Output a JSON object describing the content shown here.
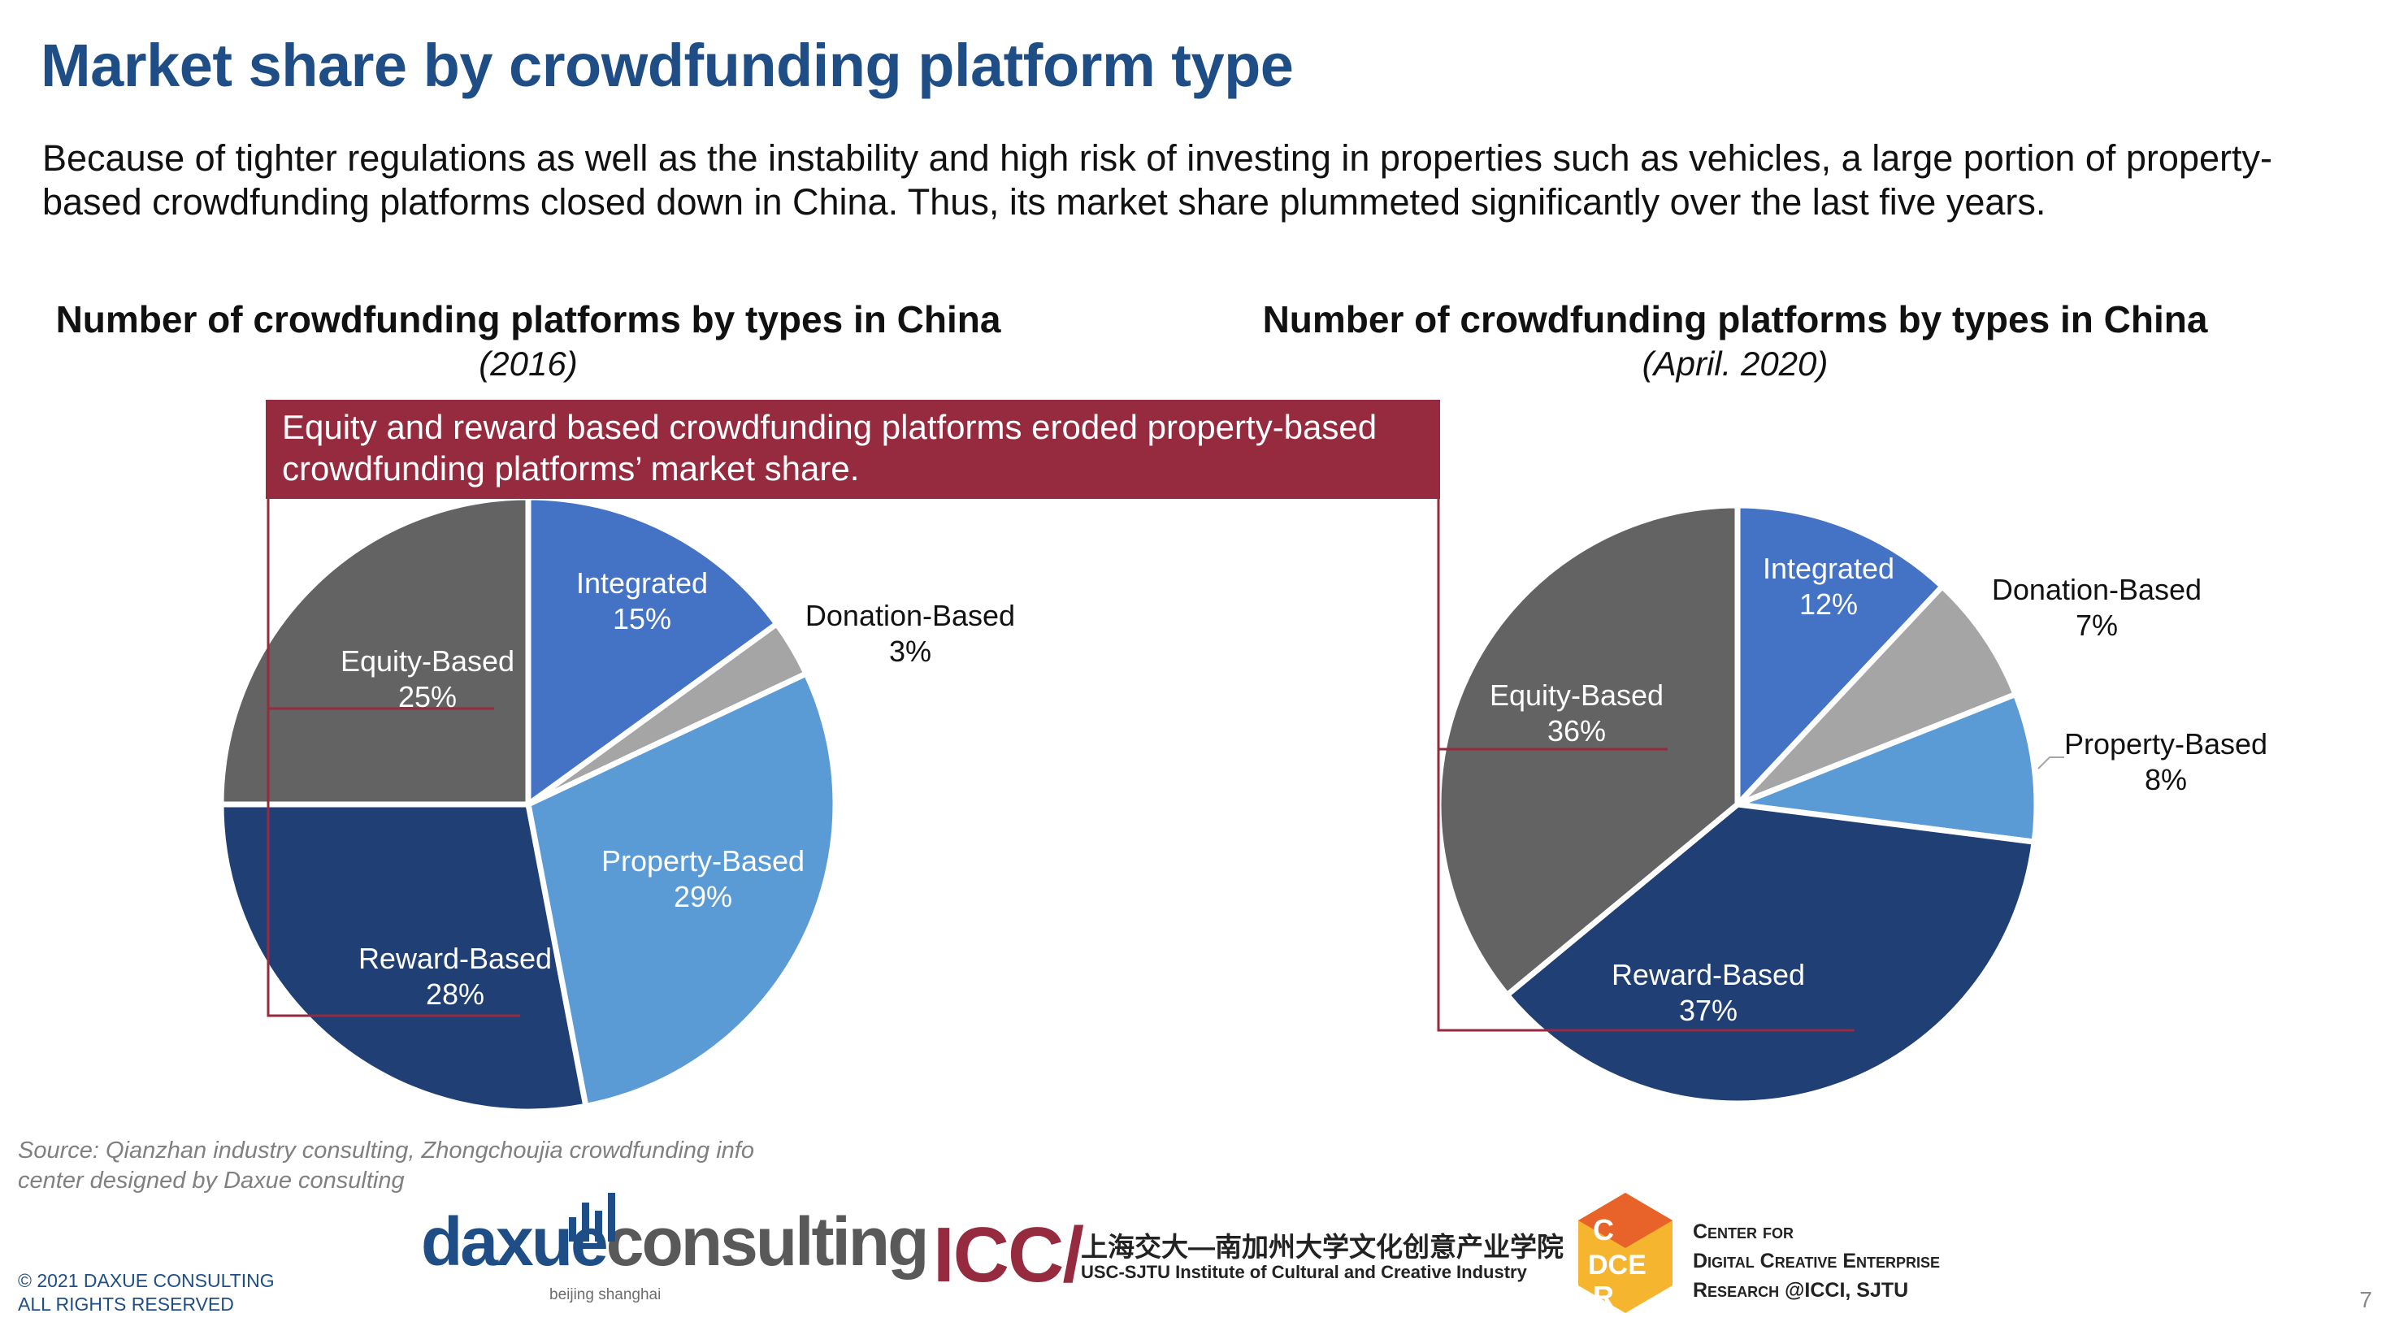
{
  "title": "Market share by crowdfunding platform type",
  "intro": "Because of tighter regulations as well as the instability and high risk of investing in properties such as vehicles, a large portion of property-based crowdfunding platforms closed down in China. Thus, its market share plummeted significantly over the last five years.",
  "callout": "Equity and reward based crowdfunding platforms eroded property-based crowdfunding platforms’ market share.",
  "source": "Source: Qianzhan industry consulting, Zhongchoujia crowdfunding info center designed by Daxue consulting",
  "copyright": [
    "© 2021 DAXUE CONSULTING",
    "ALL RIGHTS RESERVED"
  ],
  "page_number": "7",
  "colors": {
    "title": "#1f4e86",
    "callout": "#962a3e",
    "Integrated": "#4472c4",
    "Donation-Based": "#a5a5a5",
    "Property-Based": "#5b9bd5",
    "Reward-Based": "#203f75",
    "Equity-Based": "#636363"
  },
  "logos": {
    "daxue": {
      "word_part1": "daxue",
      "word_part2": "consulting",
      "sub": "beijing shanghai"
    },
    "icci": {
      "mark": "ICC/",
      "cn": "上海交大—南加州大学文化创意产业学院",
      "en": "USC-SJTU Institute of Cultural and Creative Industry"
    },
    "cdce": {
      "badge": [
        "C",
        "DCE",
        "R"
      ],
      "lines": [
        "Center for",
        "Digital Creative Enterprise",
        "Research @ICCI, SJTU"
      ]
    }
  },
  "chart_data": [
    {
      "type": "pie",
      "title": "Number of crowdfunding platforms by types in China",
      "subtitle": "(2016)",
      "categories": [
        "Integrated",
        "Donation-Based",
        "Property-Based",
        "Reward-Based",
        "Equity-Based"
      ],
      "values": [
        15,
        3,
        29,
        28,
        25
      ],
      "labels": [
        "15%",
        "3%",
        "29%",
        "28%",
        "25%"
      ]
    },
    {
      "type": "pie",
      "title": "Number of crowdfunding platforms by types in China",
      "subtitle": "(April. 2020)",
      "categories": [
        "Integrated",
        "Donation-Based",
        "Property-Based",
        "Reward-Based",
        "Equity-Based"
      ],
      "values": [
        12,
        7,
        8,
        37,
        36
      ],
      "labels": [
        "12%",
        "7%",
        "8%",
        "37%",
        "36%"
      ]
    }
  ]
}
